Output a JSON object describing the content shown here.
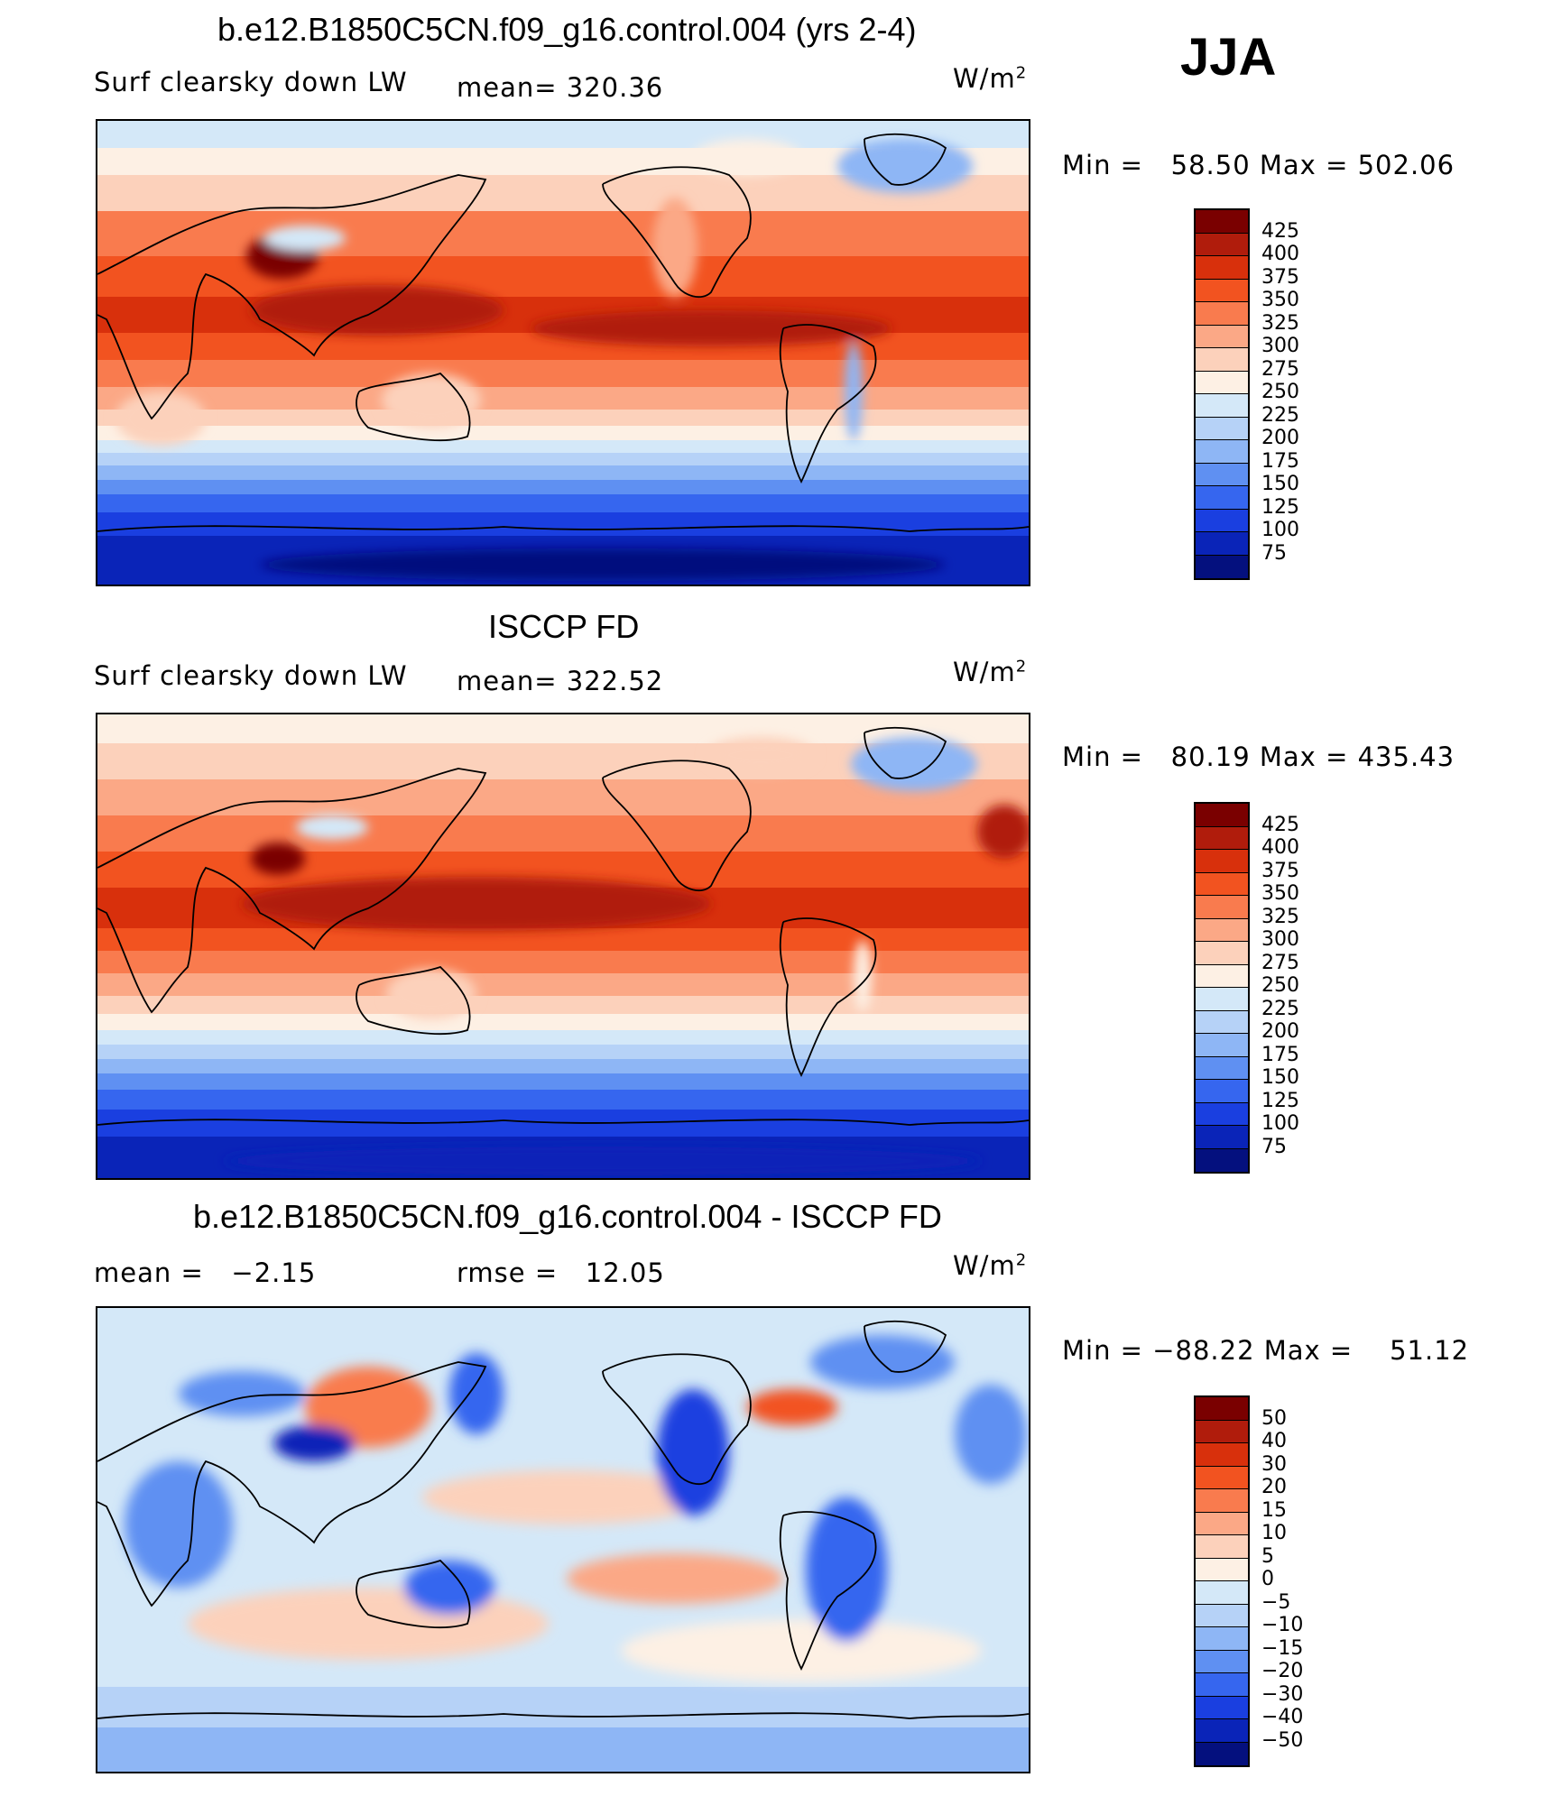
{
  "season": "JJA",
  "chart_data": [
    {
      "type": "heatmap",
      "title": "b.e12.B1850C5CN.f09_g16.control.004 (yrs 2-4)",
      "variable": "Surf clearsky down LW",
      "mean_label": "mean=",
      "mean": "320.36",
      "units": "W/m",
      "units_sup": "2",
      "min_label": "Min =",
      "min": "58.50",
      "max_label": "Max =",
      "max": "502.06",
      "colorbar_levels": [
        "425",
        "400",
        "375",
        "350",
        "325",
        "300",
        "275",
        "250",
        "225",
        "200",
        "175",
        "150",
        "125",
        "100",
        "75"
      ],
      "colorbar_colors": [
        "#7a0000",
        "#b01c0c",
        "#d8300c",
        "#f25320",
        "#f97b4e",
        "#fba886",
        "#fcd1bb",
        "#fdf0e4",
        "#d4e8f8",
        "#b6d2f7",
        "#8eb6f5",
        "#5f90f2",
        "#3666ef",
        "#1a3fe0",
        "#0a24b8",
        "#04107e"
      ]
    },
    {
      "type": "heatmap",
      "title": "ISCCP FD",
      "variable": "Surf clearsky down LW",
      "mean_label": "mean=",
      "mean": "322.52",
      "units": "W/m",
      "units_sup": "2",
      "min_label": "Min =",
      "min": "80.19",
      "max_label": "Max =",
      "max": "435.43",
      "colorbar_levels": [
        "425",
        "400",
        "375",
        "350",
        "325",
        "300",
        "275",
        "250",
        "225",
        "200",
        "175",
        "150",
        "125",
        "100",
        "75"
      ],
      "colorbar_colors": [
        "#7a0000",
        "#b01c0c",
        "#d8300c",
        "#f25320",
        "#f97b4e",
        "#fba886",
        "#fcd1bb",
        "#fdf0e4",
        "#d4e8f8",
        "#b6d2f7",
        "#8eb6f5",
        "#5f90f2",
        "#3666ef",
        "#1a3fe0",
        "#0a24b8",
        "#04107e"
      ]
    },
    {
      "type": "heatmap",
      "title": "b.e12.B1850C5CN.f09_g16.control.004 - ISCCP FD",
      "mean_label": "mean =",
      "mean": "−2.15",
      "rmse_label": "rmse =",
      "rmse": "12.05",
      "units": "W/m",
      "units_sup": "2",
      "min_label": "Min =",
      "min": "−88.22",
      "max_label": "Max =",
      "max": "51.12",
      "colorbar_levels": [
        "50",
        "40",
        "30",
        "20",
        "15",
        "10",
        "5",
        "0",
        "−5",
        "−10",
        "−15",
        "−20",
        "−30",
        "−40",
        "−50"
      ],
      "colorbar_colors": [
        "#7a0000",
        "#b01c0c",
        "#d8300c",
        "#f25320",
        "#f97b4e",
        "#fba886",
        "#fcd1bb",
        "#fdf0e4",
        "#d4e8f8",
        "#b6d2f7",
        "#8eb6f5",
        "#5f90f2",
        "#3666ef",
        "#1a3fe0",
        "#0a24b8",
        "#04107e"
      ]
    }
  ]
}
